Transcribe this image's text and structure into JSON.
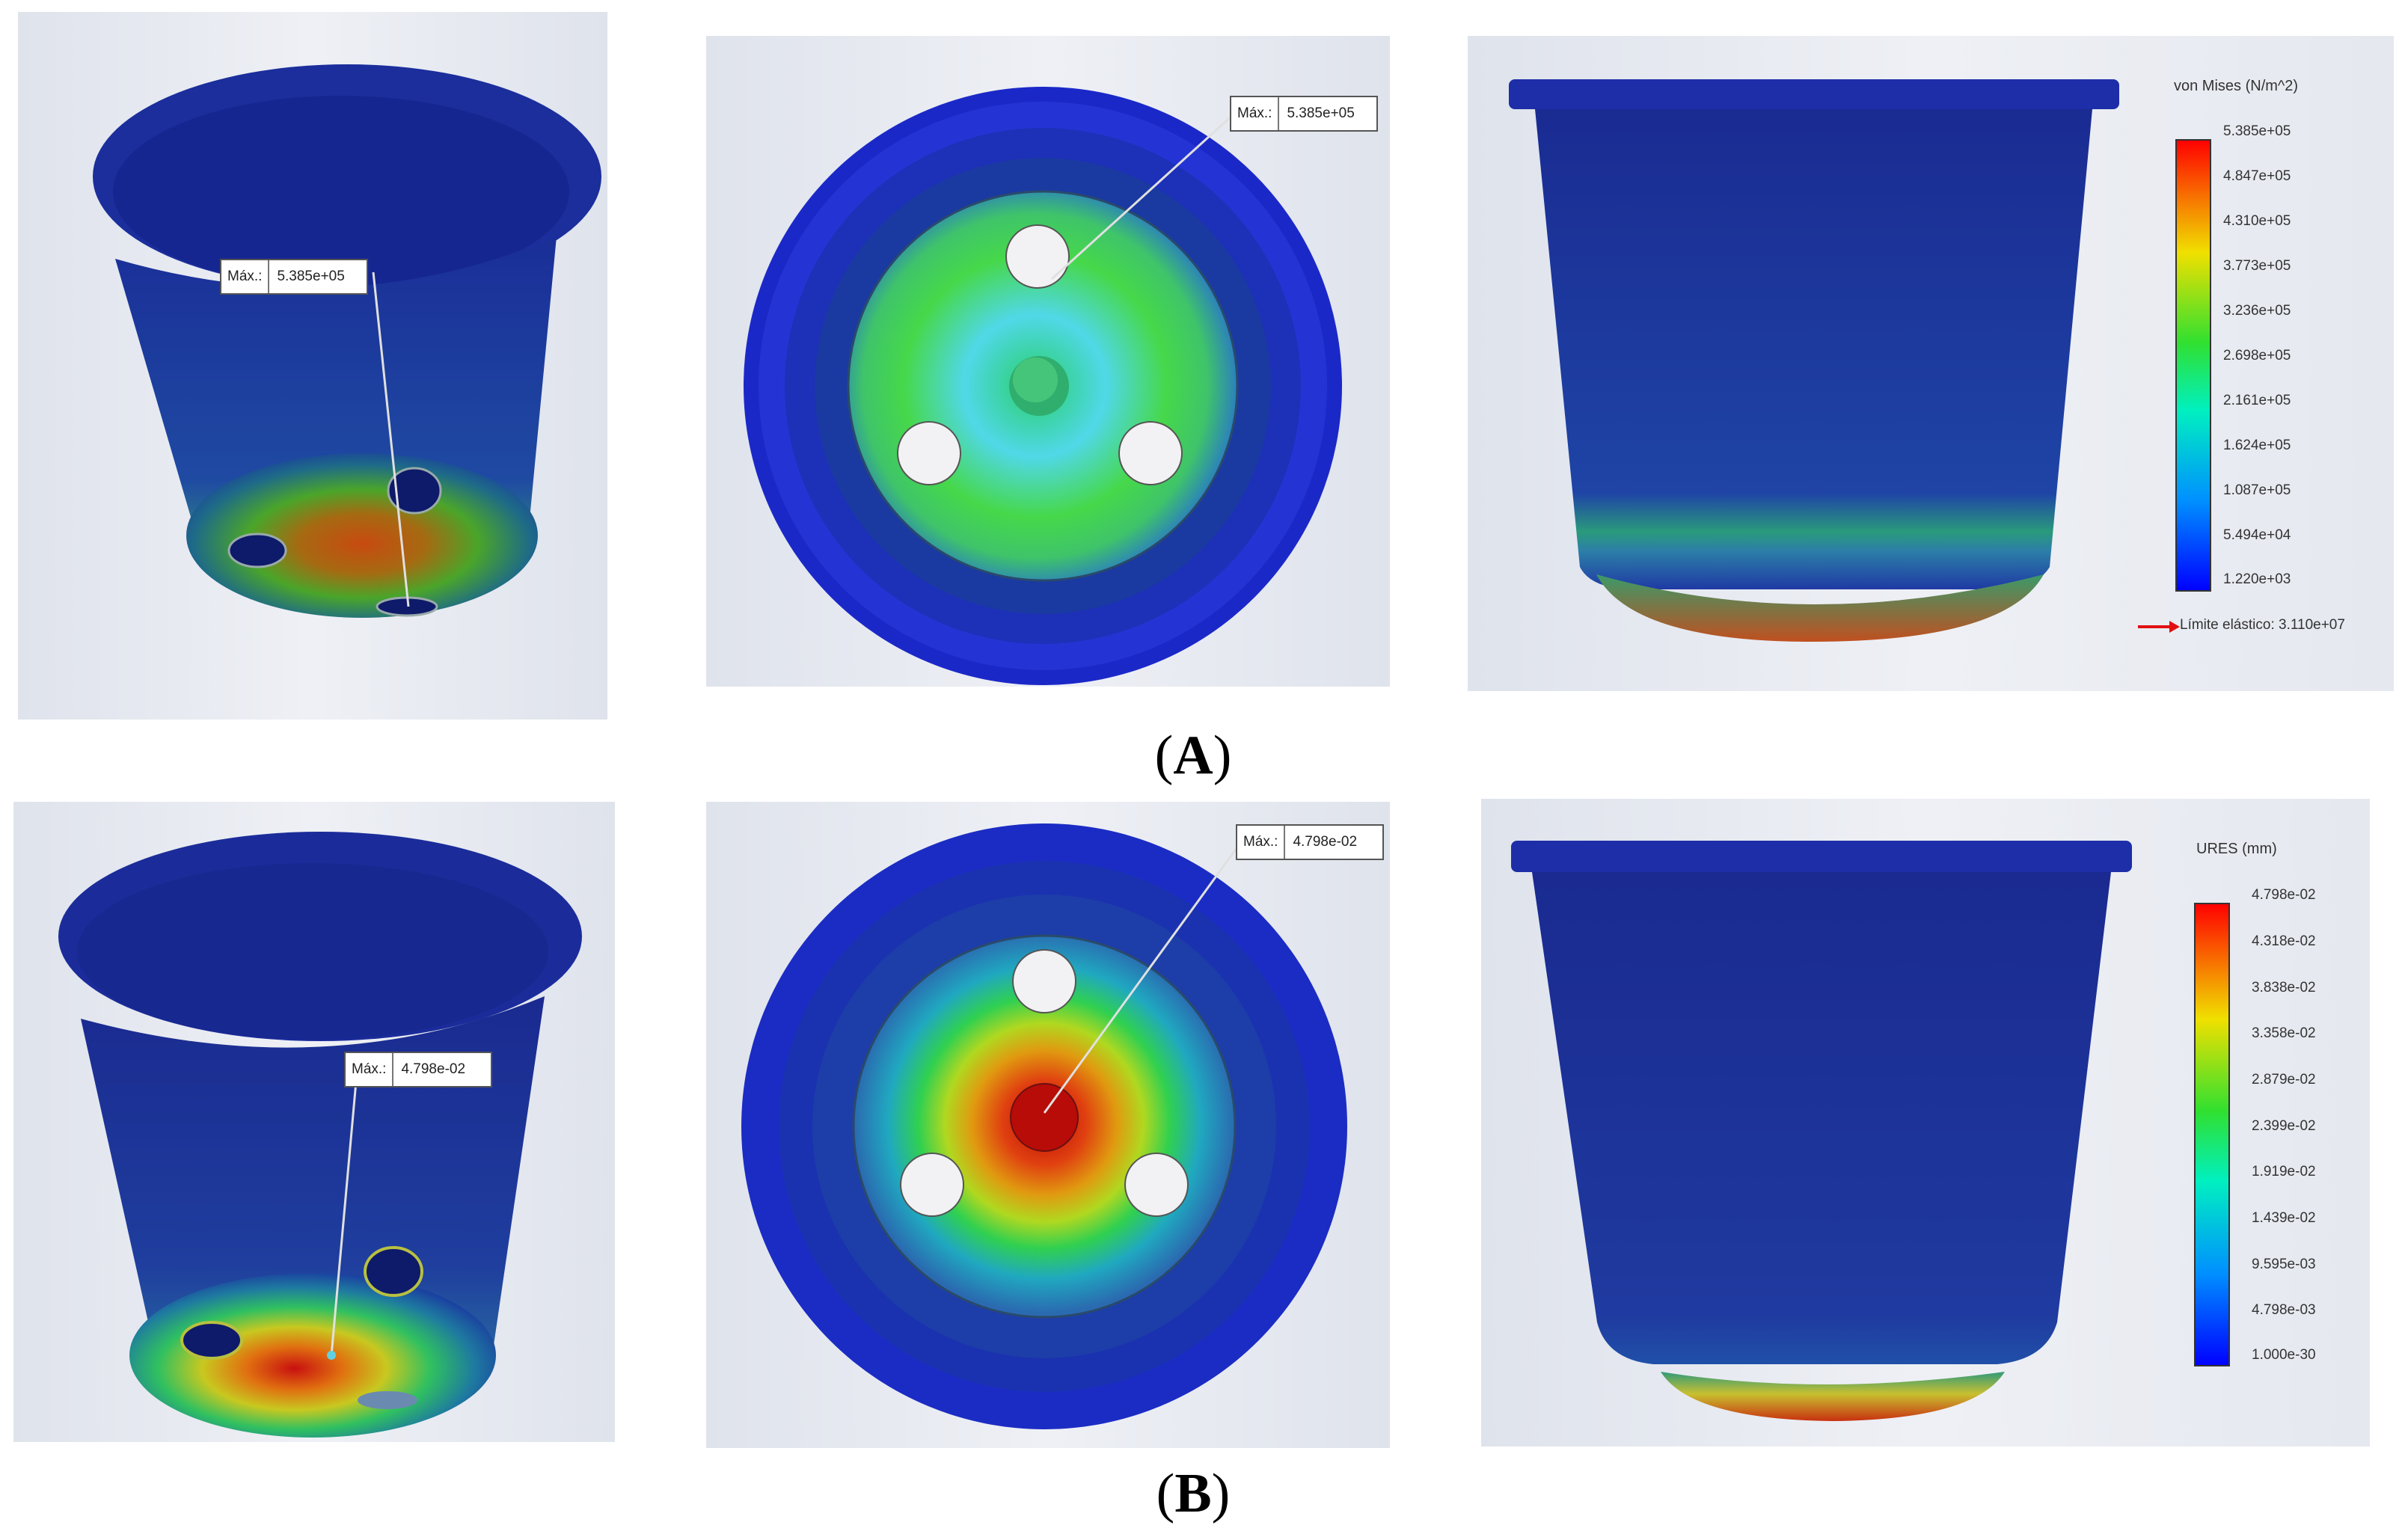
{
  "row_a": {
    "caption_letter": "A",
    "max_label_key": "Máx.:",
    "max_value": "5.385e+05",
    "legend": {
      "title": "von Mises (N/m^2)",
      "ticks": [
        "5.385e+05",
        "4.847e+05",
        "4.310e+05",
        "3.773e+05",
        "3.236e+05",
        "2.698e+05",
        "2.161e+05",
        "1.624e+05",
        "1.087e+05",
        "5.494e+04",
        "1.220e+03"
      ],
      "elastic_limit": "Límite elástico: 3.110e+07"
    }
  },
  "row_b": {
    "caption_letter": "B",
    "max_label_key": "Máx.:",
    "max_value": "4.798e-02",
    "legend": {
      "title": "URES (mm)",
      "ticks": [
        "4.798e-02",
        "4.318e-02",
        "3.838e-02",
        "3.358e-02",
        "2.879e-02",
        "2.399e-02",
        "1.919e-02",
        "1.439e-02",
        "9.595e-03",
        "4.798e-03",
        "1.000e-30"
      ]
    }
  },
  "colors": {
    "background_panel": "#e4e8f0",
    "pot_blue": "#1a2fa8",
    "max_red": "#c8200c",
    "elastic_arrow": "#e01010"
  }
}
